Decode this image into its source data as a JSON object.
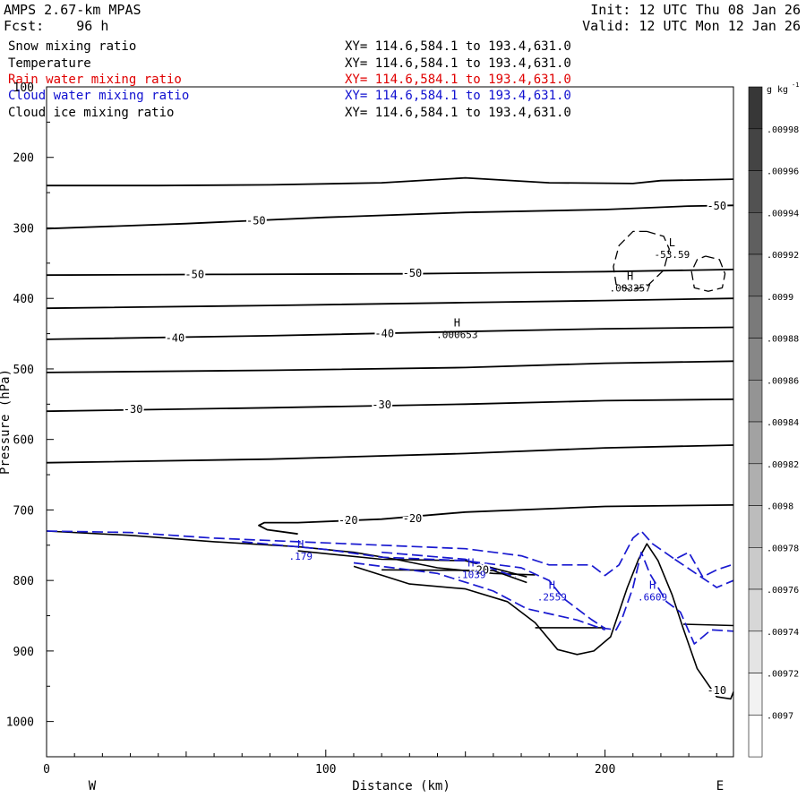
{
  "header": {
    "model": "AMPS 2.67-km MPAS",
    "fcst": "Fcst:    96 h",
    "init": "Init: 12 UTC Thu 08 Jan 26",
    "valid": "Valid: 12 UTC Mon 12 Jan 26"
  },
  "fields": [
    {
      "name": "Snow mixing ratio",
      "xy": "XY= 114.6,584.1 to 193.4,631.0",
      "color": "#000000"
    },
    {
      "name": "Temperature",
      "xy": "XY= 114.6,584.1 to 193.4,631.0",
      "color": "#000000"
    },
    {
      "name": "Rain water mixing ratio",
      "xy": "XY= 114.6,584.1 to 193.4,631.0",
      "color": "#e00000"
    },
    {
      "name": "Cloud water mixing ratio",
      "xy": "XY= 114.6,584.1 to 193.4,631.0",
      "color": "#1010d0"
    },
    {
      "name": "Cloud ice mixing ratio",
      "xy": "XY= 114.6,584.1 to 193.4,631.0",
      "color": "#000000"
    }
  ],
  "chart_data": {
    "type": "line",
    "xlabel": "Distance (km)",
    "ylabel": "Pressure (hPa)",
    "xlim": [
      0,
      246
    ],
    "ylim": [
      100,
      1050
    ],
    "y_inverted": true,
    "xticks": [
      0,
      100,
      200
    ],
    "yticks": [
      100,
      200,
      300,
      400,
      500,
      600,
      700,
      800,
      900,
      1000
    ],
    "x_end_labels": {
      "left": "W",
      "right": "E"
    },
    "colorbar": {
      "unit": "g kg",
      "unit_exponent": "-1",
      "levels": [
        ".00998",
        ".00996",
        ".00994",
        ".00992",
        ".0099",
        ".00988",
        ".00986",
        ".00984",
        ".00982",
        ".0098",
        ".00978",
        ".00976",
        ".00974",
        ".00972",
        ".0097"
      ]
    },
    "temperature_isotherms": [
      {
        "points": [
          [
            0,
            240
          ],
          [
            40,
            240
          ],
          [
            80,
            239
          ],
          [
            120,
            236
          ],
          [
            150,
            229
          ],
          [
            180,
            236
          ],
          [
            210,
            237
          ],
          [
            220,
            233
          ],
          [
            246,
            231
          ]
        ]
      },
      {
        "points": [
          [
            0,
            301
          ],
          [
            50,
            294
          ],
          [
            100,
            285
          ],
          [
            150,
            278
          ],
          [
            200,
            274
          ],
          [
            230,
            269
          ],
          [
            246,
            268
          ]
        ]
      },
      {
        "points": [
          [
            0,
            367
          ],
          [
            60,
            366
          ],
          [
            130,
            365
          ],
          [
            200,
            362
          ],
          [
            246,
            359
          ]
        ]
      },
      {
        "points": [
          [
            0,
            414
          ],
          [
            80,
            410
          ],
          [
            150,
            406
          ],
          [
            200,
            403
          ],
          [
            246,
            400
          ]
        ]
      },
      {
        "points": [
          [
            0,
            458
          ],
          [
            80,
            453
          ],
          [
            150,
            447
          ],
          [
            200,
            443
          ],
          [
            246,
            441
          ]
        ]
      },
      {
        "points": [
          [
            0,
            505
          ],
          [
            80,
            502
          ],
          [
            150,
            498
          ],
          [
            200,
            492
          ],
          [
            246,
            489
          ]
        ]
      },
      {
        "points": [
          [
            0,
            560
          ],
          [
            80,
            555
          ],
          [
            150,
            550
          ],
          [
            200,
            545
          ],
          [
            246,
            543
          ]
        ]
      },
      {
        "points": [
          [
            0,
            633
          ],
          [
            80,
            628
          ],
          [
            150,
            620
          ],
          [
            200,
            612
          ],
          [
            246,
            608
          ]
        ]
      },
      {
        "points": [
          [
            246,
            693
          ],
          [
            200,
            695
          ],
          [
            150,
            703
          ],
          [
            120,
            713
          ],
          [
            90,
            718
          ],
          [
            78,
            718
          ],
          [
            76,
            722
          ],
          [
            79,
            728
          ],
          [
            90,
            734
          ]
        ]
      }
    ],
    "temperature_labels": [
      {
        "text": "-50",
        "x": 75,
        "y": 290
      },
      {
        "text": "-50",
        "x": 240,
        "y": 269
      },
      {
        "text": "-50",
        "x": 53,
        "y": 366
      },
      {
        "text": "-50",
        "x": 131,
        "y": 364
      },
      {
        "text": "-40",
        "x": 46,
        "y": 456
      },
      {
        "text": "-40",
        "x": 121,
        "y": 450
      },
      {
        "text": "-30",
        "x": 31,
        "y": 557
      },
      {
        "text": "-30",
        "x": 120,
        "y": 551
      },
      {
        "text": "-20",
        "x": 108,
        "y": 715
      },
      {
        "text": "-20",
        "x": 131,
        "y": 712
      },
      {
        "text": "-20",
        "x": 155,
        "y": 785
      },
      {
        "text": "-10",
        "x": 240,
        "y": 956
      }
    ],
    "snow_contours": [
      {
        "points": [
          [
            0,
            730
          ],
          [
            30,
            736
          ],
          [
            60,
            745
          ],
          [
            90,
            752
          ],
          [
            110,
            760
          ],
          [
            125,
            770
          ],
          [
            140,
            782
          ],
          [
            160,
            790
          ],
          [
            175,
            792
          ]
        ]
      },
      {
        "points": [
          [
            110,
            780
          ],
          [
            130,
            805
          ],
          [
            150,
            812
          ],
          [
            165,
            830
          ],
          [
            175,
            860
          ],
          [
            183,
            898
          ],
          [
            190,
            905
          ],
          [
            196,
            900
          ],
          [
            202,
            880
          ],
          [
            208,
            810
          ],
          [
            212,
            770
          ],
          [
            215,
            748
          ],
          [
            219,
            772
          ],
          [
            224,
            820
          ],
          [
            228,
            868
          ],
          [
            233,
            925
          ],
          [
            240,
            965
          ],
          [
            245,
            968
          ],
          [
            246,
            958
          ]
        ]
      },
      {
        "points": [
          [
            175,
            867
          ],
          [
            200,
            867
          ]
        ]
      },
      {
        "points": [
          [
            228,
            862
          ],
          [
            246,
            864
          ]
        ]
      },
      {
        "points": [
          [
            120,
            785
          ],
          [
            160,
            786
          ],
          [
            172,
            803
          ]
        ]
      },
      {
        "points": [
          [
            90,
            758
          ],
          [
            120,
            770
          ],
          [
            150,
            772
          ],
          [
            172,
            795
          ]
        ]
      }
    ],
    "cloud_water_contours": [
      {
        "points": [
          [
            0,
            730
          ],
          [
            30,
            732
          ],
          [
            60,
            740
          ],
          [
            90,
            745
          ],
          [
            120,
            750
          ],
          [
            150,
            755
          ],
          [
            170,
            765
          ],
          [
            180,
            778
          ],
          [
            195,
            778
          ],
          [
            200,
            793
          ],
          [
            205,
            778
          ],
          [
            210,
            740
          ],
          [
            213,
            730
          ],
          [
            217,
            748
          ],
          [
            225,
            770
          ],
          [
            230,
            760
          ],
          [
            235,
            795
          ],
          [
            240,
            785
          ],
          [
            246,
            777
          ]
        ]
      },
      {
        "points": [
          [
            70,
            745
          ],
          [
            100,
            756
          ],
          [
            120,
            767
          ],
          [
            150,
            772
          ],
          [
            170,
            782
          ],
          [
            180,
            800
          ],
          [
            185,
            825
          ],
          [
            190,
            840
          ],
          [
            195,
            855
          ],
          [
            200,
            868
          ],
          [
            204,
            870
          ],
          [
            206,
            855
          ],
          [
            210,
            810
          ],
          [
            213,
            760
          ],
          [
            216,
            790
          ],
          [
            222,
            830
          ],
          [
            227,
            845
          ],
          [
            232,
            890
          ],
          [
            238,
            870
          ],
          [
            246,
            872
          ]
        ]
      },
      {
        "points": [
          [
            120,
            760
          ],
          [
            150,
            770
          ],
          [
            168,
            795
          ]
        ]
      },
      {
        "points": [
          [
            110,
            775
          ],
          [
            140,
            790
          ],
          [
            160,
            815
          ],
          [
            172,
            840
          ],
          [
            190,
            856
          ],
          [
            200,
            870
          ]
        ]
      },
      {
        "points": [
          [
            225,
            770
          ],
          [
            240,
            810
          ],
          [
            246,
            800
          ]
        ]
      }
    ],
    "cloud_ice_contours": [
      {
        "points": [
          [
            215,
            305
          ],
          [
            221,
            312
          ],
          [
            223,
            330
          ],
          [
            221,
            360
          ],
          [
            215,
            383
          ],
          [
            209,
            388
          ],
          [
            204,
            380
          ],
          [
            203,
            355
          ],
          [
            205,
            325
          ],
          [
            210,
            305
          ],
          [
            215,
            305
          ]
        ]
      },
      {
        "points": [
          [
            236,
            340
          ],
          [
            241,
            345
          ],
          [
            243,
            365
          ],
          [
            242,
            385
          ],
          [
            237,
            390
          ],
          [
            232,
            385
          ],
          [
            231,
            362
          ],
          [
            233,
            345
          ],
          [
            236,
            340
          ]
        ]
      }
    ],
    "annotations": [
      {
        "label": "H",
        "value": ".179",
        "x": 91,
        "y": 754,
        "color": "#1010d0"
      },
      {
        "label": "H",
        "value": ".1039",
        "x": 152,
        "y": 780,
        "color": "#1010d0"
      },
      {
        "label": "H",
        "value": ".2559",
        "x": 181,
        "y": 812,
        "color": "#1010d0"
      },
      {
        "label": "H",
        "value": ".6609",
        "x": 217,
        "y": 812,
        "color": "#1010d0"
      },
      {
        "label": "H",
        "value": ".000653",
        "x": 147,
        "y": 440,
        "color": "#000000"
      },
      {
        "label": "H",
        "value": ".003357",
        "x": 209,
        "y": 374,
        "color": "#000000"
      },
      {
        "label": "L",
        "value": "-53.59",
        "x": 224,
        "y": 326,
        "color": "#000000"
      }
    ]
  }
}
